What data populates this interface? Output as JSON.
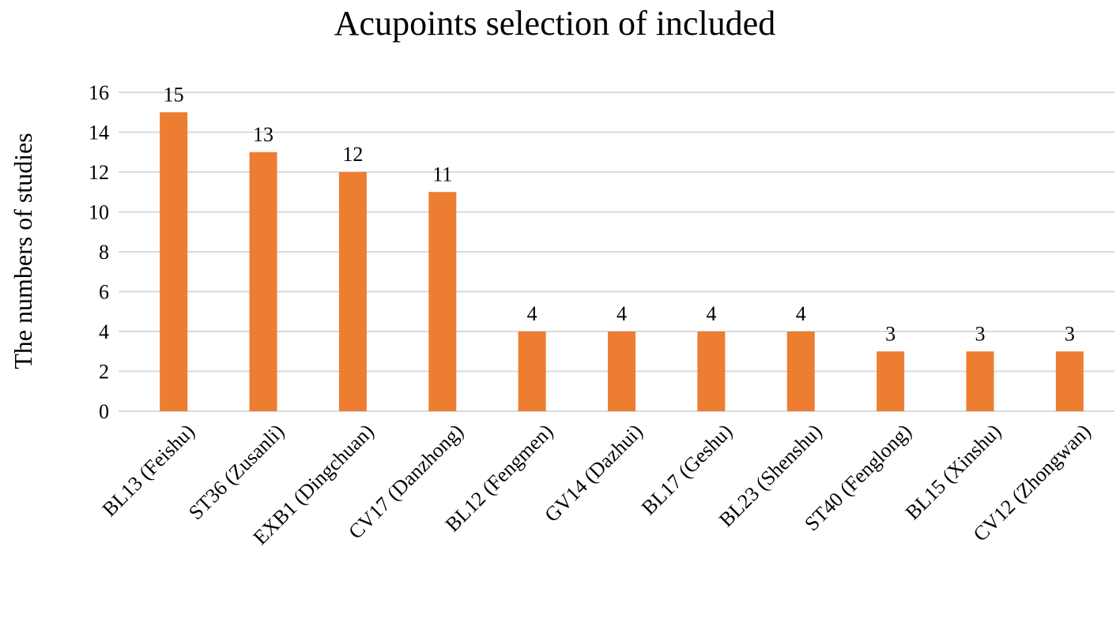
{
  "chart_data": {
    "type": "bar",
    "title": "Acupoints selection of included",
    "xlabel": "",
    "ylabel": "The numbers of studies",
    "categories": [
      "BL13 (Feishu)",
      "ST36 (Zusanli)",
      "EXB1 (Dingchuan)",
      "CV17 (Danzhong)",
      "BL12 (Fengmen)",
      "GV14 (Dazhui)",
      "BL17 (Geshu)",
      "BL23 (Shenshu)",
      "ST40 (Fenglong)",
      "BL15 (Xinshu)",
      "CV12 (Zhongwan)"
    ],
    "values": [
      15,
      13,
      12,
      11,
      4,
      4,
      4,
      4,
      3,
      3,
      3
    ],
    "ylim": [
      0,
      16
    ],
    "yticks": [
      0,
      2,
      4,
      6,
      8,
      10,
      12,
      14,
      16
    ],
    "grid": true,
    "data_labels": true,
    "bar_color": "#ED7D31",
    "grid_color": "#D9D9D9"
  }
}
